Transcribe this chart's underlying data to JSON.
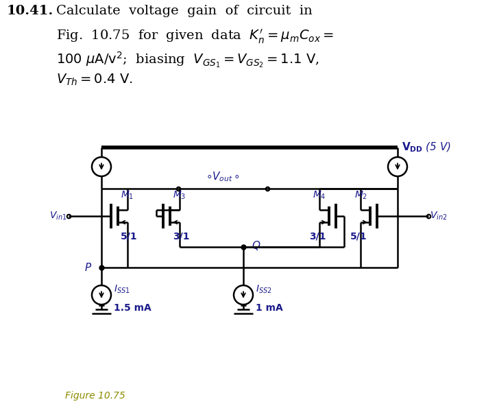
{
  "fig_label_color": "#8B8B00",
  "bg_color": "#ffffff",
  "line_color": "#000000",
  "m1_ratio": "5/1",
  "m2_ratio": "5/1",
  "m3_ratio": "3/1",
  "m4_ratio": "3/1",
  "iss1_val": "1.5 mA",
  "iss2_val": "1 mA"
}
